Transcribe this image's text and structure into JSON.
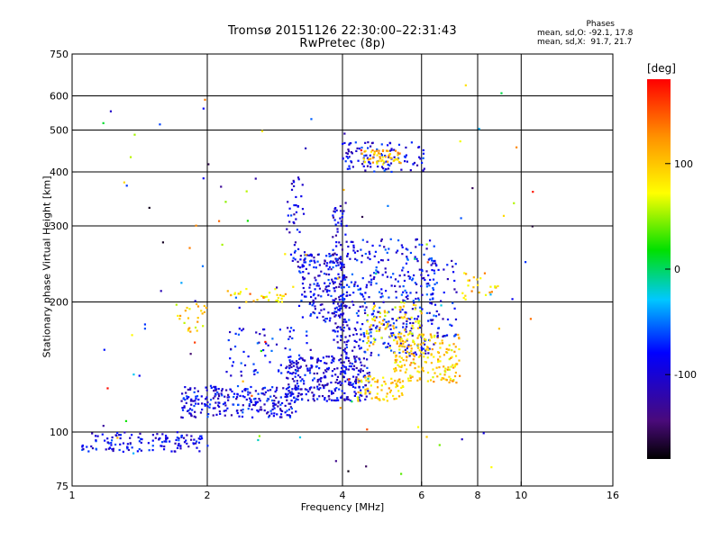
{
  "title_line1": "Tromsø 20151126 22:30:00–22:31:43",
  "title_line2": "RwPretec (8p)",
  "phases": {
    "heading": "Phases",
    "o_mode": "mean, sd,O: -92.1, 17.8",
    "x_mode": "mean, sd,X:  91.7, 21.7"
  },
  "colorbar": {
    "unit": "[deg]",
    "ticks": [
      "100",
      "0",
      "-100"
    ],
    "tick_values": [
      100,
      0,
      -100
    ],
    "range": [
      -180,
      180
    ]
  },
  "chart_data": {
    "type": "scatter",
    "xlabel": "Frequency [MHz]",
    "ylabel": "Stationary phase Virtual Height [km]",
    "x_scale": "log",
    "y_scale": "log",
    "xlim": [
      1,
      16
    ],
    "ylim": [
      75,
      750
    ],
    "x_ticks": [
      1,
      2,
      4,
      6,
      8,
      10,
      16
    ],
    "x_tick_labels": [
      "1",
      "2",
      "4",
      "6",
      "8",
      "10",
      "16"
    ],
    "y_ticks": [
      75,
      100,
      200,
      300,
      400,
      500,
      600,
      750
    ],
    "y_tick_labels": [
      "75",
      "100",
      "200",
      "300",
      "400",
      "500",
      "600",
      "750"
    ],
    "grid_x": [
      2,
      4,
      6,
      8,
      10
    ],
    "grid_y": [
      100,
      200,
      300,
      400,
      500,
      600
    ],
    "clusters": [
      {
        "x": [
          1.05,
          1.95
        ],
        "y": [
          90,
          100
        ],
        "phase": -90,
        "n": 130
      },
      {
        "x": [
          1.75,
          3.2
        ],
        "y": [
          108,
          128
        ],
        "phase": -90,
        "n": 260
      },
      {
        "x": [
          3.0,
          4.6
        ],
        "y": [
          118,
          150
        ],
        "phase": -95,
        "n": 300
      },
      {
        "x": [
          2.2,
          3.4
        ],
        "y": [
          135,
          175
        ],
        "phase": -85,
        "n": 70
      },
      {
        "x": [
          3.2,
          4.0
        ],
        "y": [
          180,
          260
        ],
        "phase": -90,
        "n": 170
      },
      {
        "x": [
          3.0,
          3.3
        ],
        "y": [
          240,
          390
        ],
        "phase": -95,
        "n": 45
      },
      {
        "x": [
          3.8,
          4.1
        ],
        "y": [
          150,
          340
        ],
        "phase": -100,
        "n": 110
      },
      {
        "x": [
          4.0,
          6.4
        ],
        "y": [
          150,
          280
        ],
        "phase": -85,
        "n": 360
      },
      {
        "x": [
          4.3,
          5.5
        ],
        "y": [
          118,
          135
        ],
        "phase": 95,
        "n": 70
      },
      {
        "x": [
          5.2,
          7.3
        ],
        "y": [
          130,
          170
        ],
        "phase": 95,
        "n": 190
      },
      {
        "x": [
          4.5,
          6.0
        ],
        "y": [
          155,
          200
        ],
        "phase": 90,
        "n": 90
      },
      {
        "x": [
          4.0,
          6.1
        ],
        "y": [
          400,
          470
        ],
        "phase": -90,
        "n": 110
      },
      {
        "x": [
          4.4,
          5.4
        ],
        "y": [
          415,
          450
        ],
        "phase": 100,
        "n": 55
      },
      {
        "x": [
          6.3,
          7.2
        ],
        "y": [
          165,
          250
        ],
        "phase": -90,
        "n": 55
      },
      {
        "x": [
          2.1,
          3.0
        ],
        "y": [
          200,
          215
        ],
        "phase": 95,
        "n": 30
      },
      {
        "x": [
          1.7,
          2.0
        ],
        "y": [
          170,
          200
        ],
        "phase": 90,
        "n": 25
      },
      {
        "x": [
          7.3,
          8.9
        ],
        "y": [
          200,
          235
        ],
        "phase": 100,
        "n": 25
      },
      {
        "x": [
          1.1,
          11
        ],
        "y": [
          80,
          650
        ],
        "phase": 0,
        "n": 110
      }
    ]
  }
}
